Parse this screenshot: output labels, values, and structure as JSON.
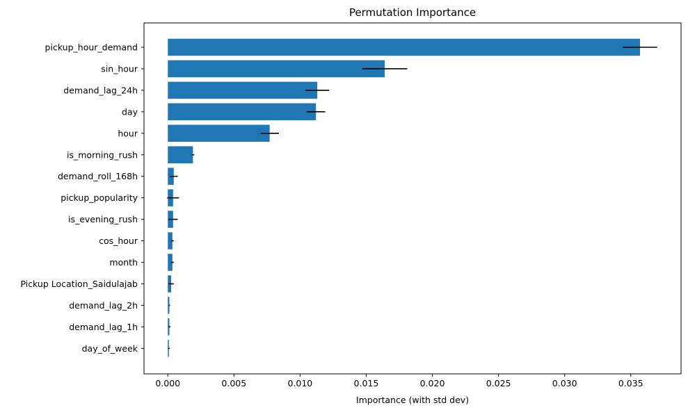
{
  "chart_data": {
    "type": "bar",
    "orientation": "horizontal",
    "title": "Permutation Importance",
    "xlabel": "Importance (with std dev)",
    "ylabel": "",
    "categories": [
      "pickup_hour_demand",
      "sin_hour",
      "demand_lag_24h",
      "day",
      "hour",
      "is_morning_rush",
      "demand_roll_168h",
      "pickup_popularity",
      "is_evening_rush",
      "cos_hour",
      "month",
      "Pickup Location_Saidulajab",
      "demand_lag_2h",
      "demand_lag_1h",
      "day_of_week"
    ],
    "values": [
      0.0357,
      0.0164,
      0.0113,
      0.0112,
      0.0077,
      0.0019,
      0.00045,
      0.0004,
      0.0004,
      0.00035,
      0.00035,
      0.00025,
      0.00012,
      0.00012,
      8e-05
    ],
    "errors": [
      0.0013,
      0.0017,
      0.0009,
      0.0007,
      0.0007,
      0.0001,
      0.0003,
      0.00045,
      0.00035,
      0.0001,
      0.0001,
      0.0002,
      5e-05,
      8e-05,
      7e-05
    ],
    "xlim": [
      -0.0018,
      0.0388
    ],
    "xticks": [
      0.0,
      0.005,
      0.01,
      0.015,
      0.02,
      0.025,
      0.03,
      0.035
    ],
    "xtick_labels": [
      "0.000",
      "0.005",
      "0.010",
      "0.015",
      "0.020",
      "0.025",
      "0.030",
      "0.035"
    ],
    "grid": false,
    "bar_color": "#1f77b4",
    "error_color": "#000000"
  }
}
